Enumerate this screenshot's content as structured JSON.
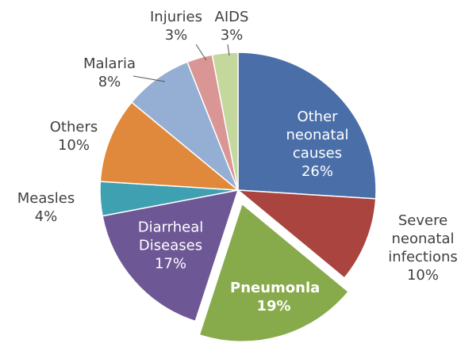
{
  "chart_data": {
    "type": "pie",
    "categories": [
      "Other neonatal causes",
      "Severe neonatal infections",
      "Pneumonla",
      "Diarrheal Diseases",
      "Measles",
      "Others",
      "Malaria",
      "Injuries",
      "AIDS"
    ],
    "values": [
      26,
      10,
      19,
      17,
      4,
      10,
      8,
      3,
      3
    ],
    "value_labels": [
      "26%",
      "10%",
      "19%",
      "17%",
      "4%",
      "10%",
      "8%",
      "3%",
      "3%"
    ],
    "colors": [
      "#4a6fa8",
      "#a9443f",
      "#87aa4b",
      "#6e5795",
      "#3ea0b1",
      "#e0883b",
      "#94afd3",
      "#d99694",
      "#c4d79c"
    ],
    "exploded": [
      "Pneumonla"
    ]
  }
}
